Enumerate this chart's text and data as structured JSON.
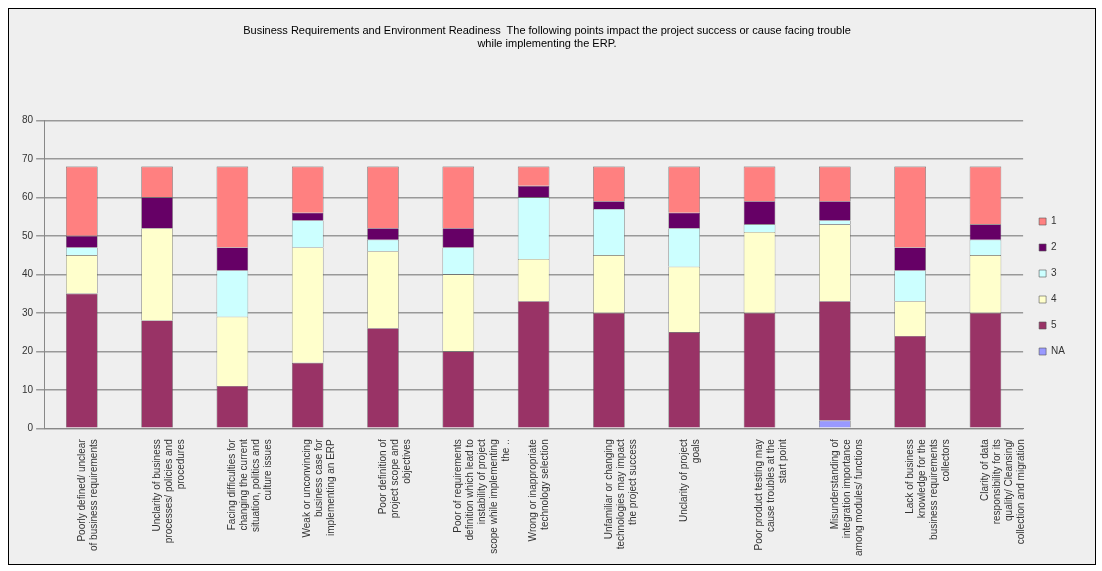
{
  "chart_data": {
    "type": "bar",
    "stacked": true,
    "title": "Business Requirements and Environment Readiness  The following points impact the project success or cause facing trouble while implementing the ERP.",
    "categories": [
      "Poorly defined/ unclear of business requirements",
      "Unclarity of business processes/ policies and procedures",
      "Facing difficulties for changing the current situation, politics and culture issues",
      "Weak or unconvincing business case for implementing an ERP",
      "Poor definition of project scope and objectives",
      "Poor of requirements definition which lead to instability of project scope while implementing the ..",
      "Wrong or inappropriate technology selection",
      "Unfamiliar or changing technologies may impact the project success",
      "Unclarity of project goals",
      "Poor product testing may cause troubles at the start point",
      "Misunderstanding of integration importance among modules/ functions",
      "Lack of business knowledge for the business requirements collectors",
      "Clarity of data responsibility for its quality/ Cleansing/ collection and migration"
    ],
    "series": [
      {
        "name": "NA",
        "color": "#9999ff",
        "values": [
          0,
          0,
          0,
          0,
          0,
          0,
          0,
          0,
          0,
          0,
          2,
          0,
          0
        ]
      },
      {
        "name": "5",
        "color": "#993366",
        "values": [
          35,
          28,
          11,
          17,
          26,
          20,
          33,
          30,
          25,
          30,
          31,
          24,
          30
        ]
      },
      {
        "name": "4",
        "color": "#ffffcc",
        "values": [
          10,
          24,
          18,
          30,
          20,
          20,
          11,
          15,
          17,
          21,
          20,
          9,
          15
        ]
      },
      {
        "name": "3",
        "color": "#ccffff",
        "values": [
          2,
          0,
          12,
          7,
          3,
          7,
          16,
          12,
          10,
          2,
          1,
          8,
          4
        ]
      },
      {
        "name": "2",
        "color": "#660066",
        "values": [
          3,
          8,
          6,
          2,
          3,
          5,
          3,
          2,
          4,
          6,
          5,
          6,
          4
        ]
      },
      {
        "name": "1",
        "color": "#ff8080",
        "values": [
          18,
          8,
          21,
          12,
          16,
          16,
          5,
          9,
          12,
          9,
          9,
          21,
          15
        ]
      }
    ],
    "ylim": [
      0,
      80
    ],
    "yticks": [
      0,
      10,
      20,
      30,
      40,
      50,
      60,
      70,
      80
    ],
    "grid": "y",
    "legend": "right"
  }
}
